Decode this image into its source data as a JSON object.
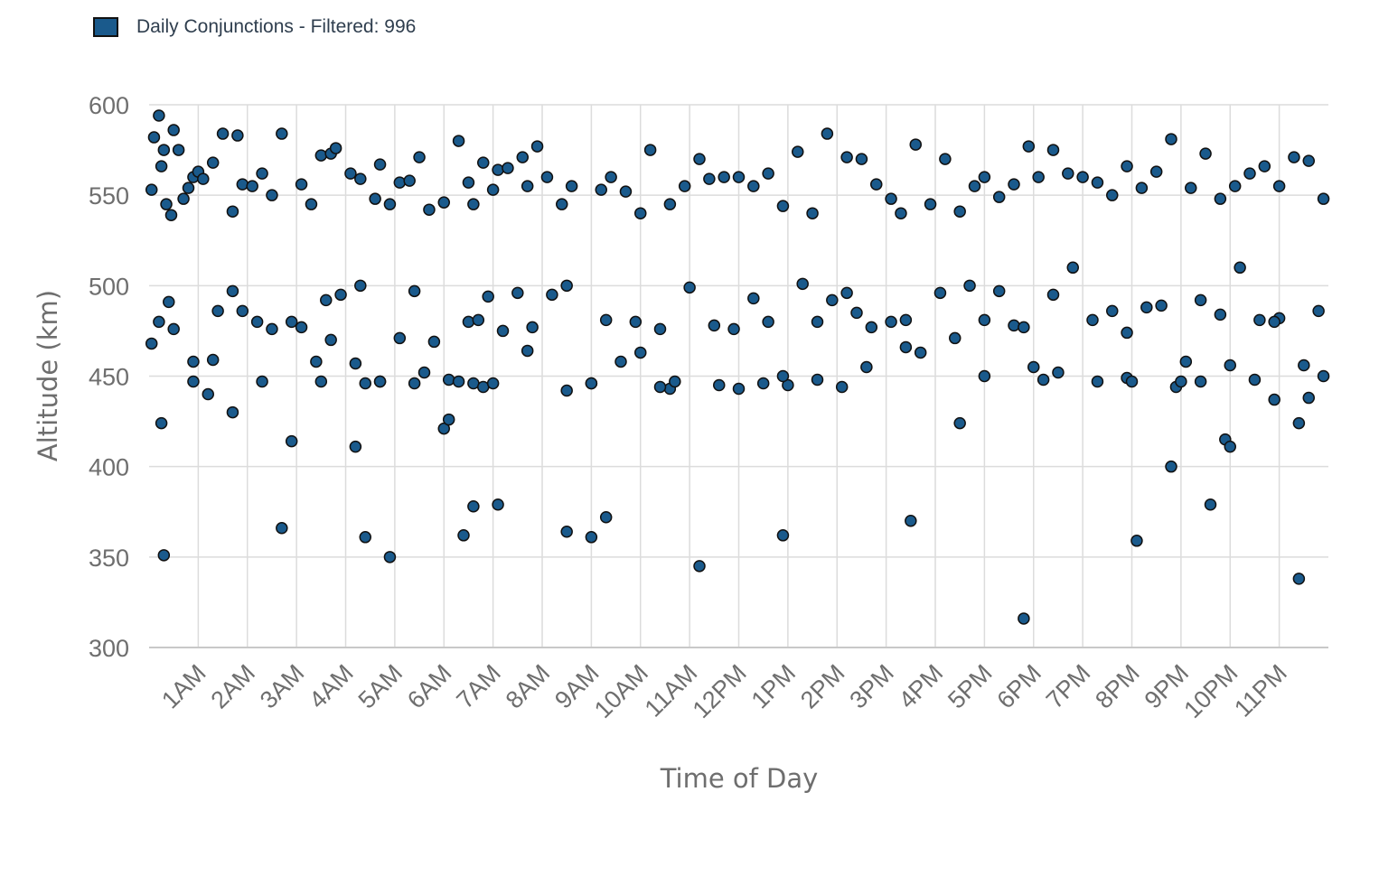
{
  "chart_data": {
    "type": "scatter",
    "legend": {
      "label": "Daily Conjunctions - Filtered: 996",
      "color": "#1a5a8c",
      "position": "top-left"
    },
    "xlabel": "Time of Day",
    "ylabel": "Altitude (km)",
    "xlim": [
      0,
      24
    ],
    "ylim": [
      300,
      600
    ],
    "x_ticks": [
      1,
      2,
      3,
      4,
      5,
      6,
      7,
      8,
      9,
      10,
      11,
      12,
      13,
      14,
      15,
      16,
      17,
      18,
      19,
      20,
      21,
      22,
      23
    ],
    "x_tick_labels": [
      "1AM",
      "2AM",
      "3AM",
      "4AM",
      "5AM",
      "6AM",
      "7AM",
      "8AM",
      "9AM",
      "10AM",
      "11AM",
      "12PM",
      "1PM",
      "2PM",
      "3PM",
      "4PM",
      "5PM",
      "6PM",
      "7PM",
      "8PM",
      "9PM",
      "10PM",
      "11PM"
    ],
    "y_ticks": [
      300,
      350,
      400,
      450,
      500,
      550,
      600
    ],
    "grid": true,
    "point_color": "#1a5a8c",
    "edge_color": "#111111",
    "series": [
      {
        "x": [
          0.05,
          0.1,
          0.2,
          0.25,
          0.3,
          0.35,
          0.45,
          0.5,
          0.6,
          0.7,
          0.8,
          0.9,
          1.0,
          1.1,
          1.3,
          1.5,
          1.7,
          1.8,
          1.9,
          2.1,
          2.3,
          2.5,
          2.7,
          3.1,
          3.3,
          3.5,
          3.7,
          3.8,
          4.1,
          4.3,
          4.6,
          4.7,
          4.9,
          5.1,
          5.3,
          5.5,
          5.7,
          6.0,
          6.3,
          6.5,
          6.6,
          6.8,
          7.0,
          7.1,
          7.3,
          7.6,
          7.7,
          7.9,
          8.1,
          8.4,
          8.6,
          9.2,
          9.4,
          9.7,
          10.0,
          10.2,
          10.6,
          10.9,
          11.2,
          11.4,
          11.7,
          12.0,
          12.3,
          12.6,
          12.9,
          13.2,
          13.5,
          13.8,
          14.2,
          14.5,
          14.8,
          15.1,
          15.3,
          15.6,
          15.9,
          16.2,
          16.5,
          16.8,
          17.0,
          17.3,
          17.6,
          17.9,
          18.1,
          18.4,
          18.7,
          19.0,
          19.3,
          19.6,
          19.9,
          20.2,
          20.5,
          20.8,
          21.2,
          21.5,
          21.8,
          22.1,
          22.4,
          22.7,
          23.0,
          23.3,
          23.6,
          23.9,
          0.05,
          0.2,
          0.4,
          0.5,
          0.9,
          1.2,
          1.4,
          1.7,
          1.9,
          2.2,
          2.5,
          2.9,
          3.1,
          3.4,
          3.6,
          3.9,
          4.3,
          4.7,
          5.1,
          5.4,
          5.8,
          6.1,
          6.5,
          6.7,
          6.9,
          7.2,
          7.5,
          7.8,
          8.2,
          8.5,
          9.0,
          9.3,
          9.6,
          9.9,
          10.4,
          10.6,
          11.0,
          11.5,
          11.9,
          12.3,
          12.6,
          13.0,
          13.3,
          13.6,
          13.9,
          14.2,
          14.4,
          14.7,
          15.1,
          15.4,
          15.7,
          16.1,
          16.4,
          16.7,
          17.0,
          17.3,
          17.6,
          18.0,
          18.4,
          18.8,
          19.2,
          19.6,
          19.9,
          20.3,
          20.6,
          21.1,
          21.4,
          21.8,
          22.2,
          22.6,
          23.0,
          23.5,
          23.8,
          0.25,
          0.9,
          1.3,
          1.7,
          2.3,
          2.9,
          3.5,
          3.7,
          4.2,
          4.4,
          4.7,
          5.4,
          5.6,
          6.0,
          6.3,
          6.6,
          6.8,
          7.0,
          7.7,
          8.5,
          9.0,
          10.0,
          10.4,
          10.7,
          11.6,
          12.0,
          12.5,
          12.9,
          13.6,
          14.1,
          14.6,
          15.4,
          16.5,
          17.0,
          17.8,
          18.2,
          18.5,
          19.3,
          19.9,
          20.0,
          20.9,
          21.0,
          21.4,
          21.9,
          22.0,
          22.5,
          22.9,
          23.4,
          23.9,
          0.3,
          2.7,
          4.2,
          4.4,
          4.9,
          6.1,
          6.4,
          6.6,
          7.1,
          8.5,
          9.0,
          9.3,
          11.2,
          12.9,
          15.5,
          17.8,
          20.1,
          20.8,
          21.6,
          22.0,
          22.9,
          23.4,
          23.6
        ],
        "y": [
          553,
          582,
          594,
          566,
          575,
          545,
          539,
          586,
          575,
          548,
          554,
          560,
          563,
          559,
          568,
          584,
          541,
          583,
          556,
          555,
          562,
          550,
          584,
          556,
          545,
          572,
          573,
          576,
          562,
          559,
          548,
          567,
          545,
          557,
          558,
          571,
          542,
          546,
          580,
          557,
          545,
          568,
          553,
          564,
          565,
          571,
          555,
          577,
          560,
          545,
          555,
          553,
          560,
          552,
          540,
          575,
          545,
          555,
          570,
          559,
          560,
          560,
          555,
          562,
          544,
          574,
          540,
          584,
          571,
          570,
          556,
          548,
          540,
          578,
          545,
          570,
          541,
          555,
          560,
          549,
          556,
          577,
          560,
          575,
          562,
          560,
          557,
          550,
          566,
          554,
          563,
          581,
          554,
          573,
          548,
          555,
          562,
          566,
          555,
          571,
          569,
          548,
          468,
          480,
          491,
          476,
          458,
          440,
          486,
          497,
          486,
          480,
          476,
          480,
          477,
          458,
          492,
          495,
          500,
          447,
          471,
          497,
          469,
          448,
          480,
          481,
          494,
          475,
          496,
          477,
          495,
          500,
          446,
          481,
          458,
          480,
          476,
          443,
          499,
          478,
          476,
          493,
          480,
          445,
          501,
          480,
          492,
          496,
          485,
          477,
          480,
          481,
          463,
          496,
          471,
          500,
          481,
          497,
          478,
          455,
          495,
          510,
          481,
          486,
          474,
          488,
          489,
          458,
          492,
          484,
          510,
          481,
          482,
          456,
          486,
          424,
          447,
          459,
          430,
          447,
          414,
          447,
          470,
          457,
          446,
          447,
          446,
          452,
          421,
          447,
          446,
          444,
          446,
          464,
          442,
          446,
          463,
          444,
          447,
          445,
          443,
          446,
          450,
          448,
          444,
          455,
          466,
          424,
          450,
          477,
          448,
          452,
          447,
          449,
          447,
          444,
          447,
          447,
          415,
          456,
          448,
          480,
          424,
          450,
          351,
          366,
          411,
          361,
          350,
          426,
          362,
          378,
          379,
          364,
          361,
          372,
          345,
          362,
          370,
          316,
          359,
          400,
          379,
          411,
          437,
          338,
          438
        ]
      }
    ]
  }
}
